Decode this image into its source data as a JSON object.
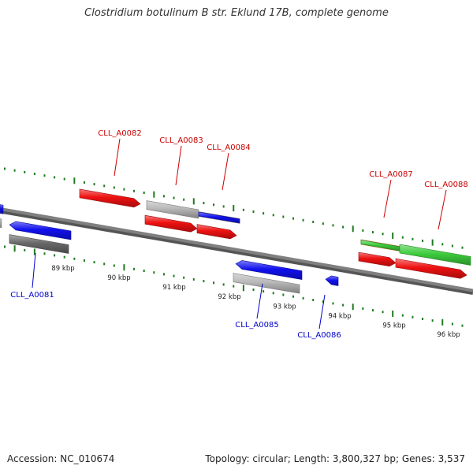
{
  "title": "Clostridium botulinum B str. Eklund 17B, complete genome",
  "footer": {
    "accession": "Accession: NC_010674",
    "summary": "Topology: circular; Length: 3,800,327 bp; Genes: 3,537"
  },
  "colors": {
    "backbone": "#808080",
    "tick": "#1e7a1e",
    "label_forward": "#cc0000",
    "label_reverse": "#0000cc",
    "red": "#ee1111",
    "blue": "#1111ee",
    "gray": "#b8b8b8",
    "darkgray": "#686868",
    "orange": "#f29411",
    "green": "#3dcc3d"
  },
  "scale_labels": [
    "89 kbp",
    "90 kbp",
    "91 kbp",
    "92 kbp",
    "93 kbp",
    "94 kbp",
    "95 kbp",
    "96 kbp"
  ],
  "gene_labels": [
    {
      "text": "CLL_A0082",
      "strand": "forward"
    },
    {
      "text": "CLL_A0083",
      "strand": "forward"
    },
    {
      "text": "CLL_A0084",
      "strand": "forward"
    },
    {
      "text": "CLL_A0087",
      "strand": "forward"
    },
    {
      "text": "CLL_A0088",
      "strand": "forward"
    },
    {
      "text": "CLL_A0081",
      "strand": "reverse"
    },
    {
      "text": "CLL_A0085",
      "strand": "reverse"
    },
    {
      "text": "CLL_A0086",
      "strand": "reverse"
    }
  ]
}
